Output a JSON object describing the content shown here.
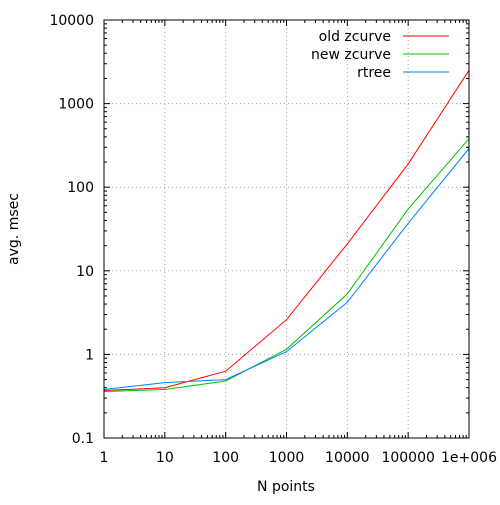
{
  "chart_data": {
    "type": "line",
    "xlabel": "N points",
    "ylabel": "avg. msec",
    "x_scale": "log",
    "y_scale": "log",
    "xlim": [
      1,
      1000000
    ],
    "ylim": [
      0.1,
      10000
    ],
    "grid": true,
    "legend_position": "top-right",
    "x_ticks": [
      {
        "value": 1,
        "label": "1"
      },
      {
        "value": 10,
        "label": "10"
      },
      {
        "value": 100,
        "label": "100"
      },
      {
        "value": 1000,
        "label": "1000"
      },
      {
        "value": 10000,
        "label": "10000"
      },
      {
        "value": 100000,
        "label": "100000"
      },
      {
        "value": 1000000,
        "label": "1e+006"
      }
    ],
    "y_ticks": [
      {
        "value": 0.1,
        "label": "0.1"
      },
      {
        "value": 1,
        "label": "1"
      },
      {
        "value": 10,
        "label": "10"
      },
      {
        "value": 100,
        "label": "100"
      },
      {
        "value": 1000,
        "label": "1000"
      },
      {
        "value": 10000,
        "label": "10000"
      }
    ],
    "x": [
      1,
      10,
      100,
      1000,
      10000,
      100000,
      1000000
    ],
    "series": [
      {
        "name": "old zcurve",
        "color": "#ff0000",
        "values": [
          0.37,
          0.4,
          0.63,
          2.6,
          21,
          190,
          2500
        ]
      },
      {
        "name": "new zcurve",
        "color": "#00c000",
        "values": [
          0.36,
          0.38,
          0.48,
          1.15,
          5.3,
          55,
          380
        ]
      },
      {
        "name": "rtree",
        "color": "#0080ff",
        "values": [
          0.38,
          0.46,
          0.5,
          1.08,
          4.2,
          37,
          290
        ]
      }
    ]
  }
}
